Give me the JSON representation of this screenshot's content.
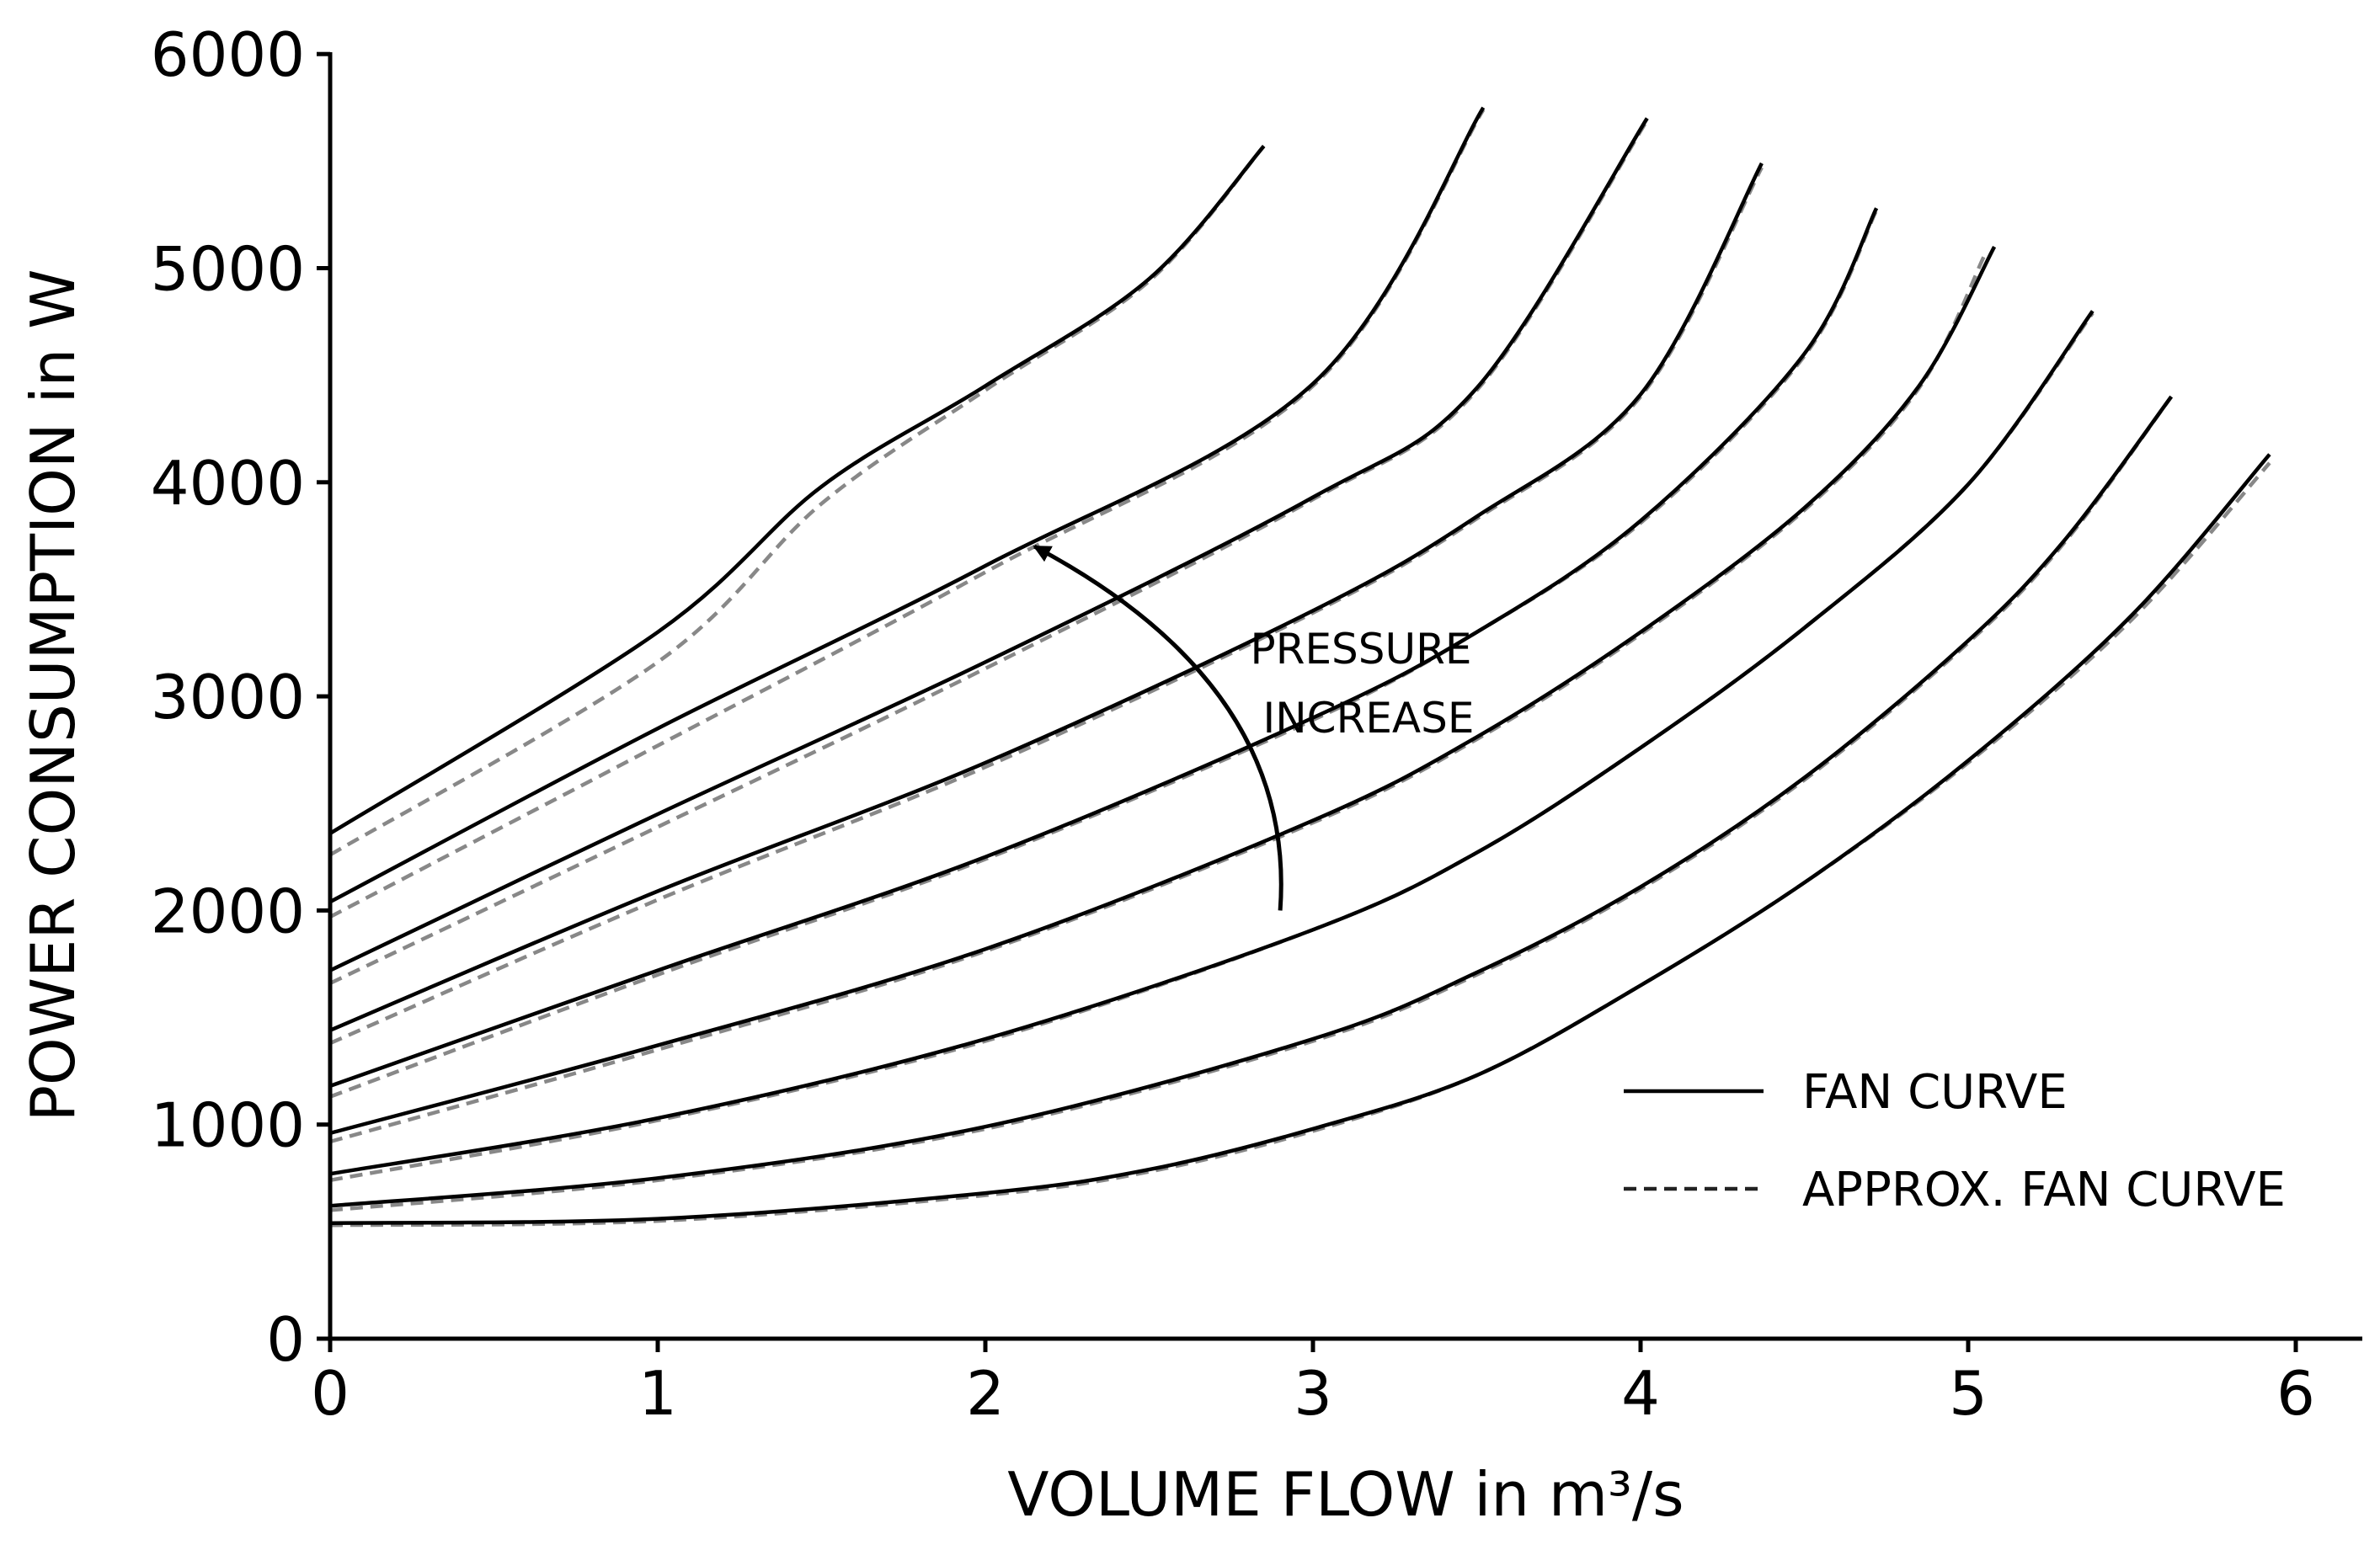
{
  "chart_data": {
    "type": "line",
    "xlabel": "VOLUME FLOW in m³/s",
    "ylabel": "POWER CONSUMPTION in W",
    "xlim": [
      0,
      6.2
    ],
    "ylim": [
      0,
      6000
    ],
    "x_ticks": [
      0,
      1,
      2,
      3,
      4,
      5,
      6
    ],
    "y_ticks": [
      0,
      1000,
      2000,
      3000,
      4000,
      5000,
      6000
    ],
    "grid": false,
    "legend_position": "bottom-right",
    "legend": [
      {
        "label": "FAN CURVE",
        "style": "solid",
        "color": "#000000"
      },
      {
        "label": "APPROX. FAN CURVE",
        "style": "dashed",
        "color": "#888888"
      }
    ],
    "annotation": {
      "lines": [
        "PRESSURE",
        "INCREASE"
      ],
      "arrow_from": [
        2.9,
        2000
      ],
      "arrow_to": [
        2.15,
        3700
      ]
    },
    "series": [
      {
        "fan": [
          [
            0,
            540
          ],
          [
            1,
            560
          ],
          [
            2,
            680
          ],
          [
            2.5,
            790
          ],
          [
            3,
            980
          ],
          [
            3.5,
            1230
          ],
          [
            4,
            1650
          ],
          [
            4.5,
            2130
          ],
          [
            5,
            2700
          ],
          [
            5.5,
            3380
          ],
          [
            5.92,
            4130
          ]
        ],
        "approx": [
          [
            0,
            530
          ],
          [
            1,
            550
          ],
          [
            2,
            670
          ],
          [
            2.5,
            780
          ],
          [
            3,
            970
          ],
          [
            3.5,
            1230
          ],
          [
            4,
            1650
          ],
          [
            4.5,
            2130
          ],
          [
            5,
            2690
          ],
          [
            5.5,
            3360
          ],
          [
            5.92,
            4090
          ]
        ]
      },
      {
        "fan": [
          [
            0,
            620
          ],
          [
            1,
            750
          ],
          [
            2,
            990
          ],
          [
            3,
            1400
          ],
          [
            3.5,
            1710
          ],
          [
            4,
            2110
          ],
          [
            4.5,
            2620
          ],
          [
            5,
            3260
          ],
          [
            5.3,
            3740
          ],
          [
            5.62,
            4400
          ]
        ],
        "approx": [
          [
            0,
            600
          ],
          [
            1,
            740
          ],
          [
            2,
            980
          ],
          [
            3,
            1390
          ],
          [
            3.5,
            1700
          ],
          [
            4,
            2100
          ],
          [
            4.5,
            2610
          ],
          [
            5,
            3250
          ],
          [
            5.3,
            3730
          ],
          [
            5.62,
            4400
          ]
        ]
      },
      {
        "fan": [
          [
            0,
            770
          ],
          [
            1,
            1030
          ],
          [
            2,
            1400
          ],
          [
            3,
            1910
          ],
          [
            3.5,
            2270
          ],
          [
            4,
            2760
          ],
          [
            4.5,
            3320
          ],
          [
            5,
            3990
          ],
          [
            5.38,
            4800
          ]
        ],
        "approx": [
          [
            0,
            740
          ],
          [
            1,
            1020
          ],
          [
            2,
            1390
          ],
          [
            3,
            1910
          ],
          [
            3.5,
            2270
          ],
          [
            4,
            2760
          ],
          [
            4.5,
            3320
          ],
          [
            5,
            3990
          ],
          [
            5.38,
            4790
          ]
        ]
      },
      {
        "fan": [
          [
            0,
            960
          ],
          [
            1,
            1370
          ],
          [
            2,
            1820
          ],
          [
            3,
            2420
          ],
          [
            3.5,
            2810
          ],
          [
            4,
            3300
          ],
          [
            4.5,
            3880
          ],
          [
            4.85,
            4450
          ],
          [
            5.08,
            5100
          ]
        ],
        "approx": [
          [
            0,
            920
          ],
          [
            1,
            1350
          ],
          [
            2,
            1810
          ],
          [
            3,
            2410
          ],
          [
            3.5,
            2800
          ],
          [
            4,
            3290
          ],
          [
            4.5,
            3870
          ],
          [
            4.85,
            4440
          ],
          [
            5.05,
            5060
          ]
        ]
      },
      {
        "fan": [
          [
            0,
            1180
          ],
          [
            1,
            1720
          ],
          [
            2,
            2250
          ],
          [
            3,
            2900
          ],
          [
            3.5,
            3300
          ],
          [
            4,
            3820
          ],
          [
            4.5,
            4600
          ],
          [
            4.72,
            5280
          ]
        ],
        "approx": [
          [
            0,
            1130
          ],
          [
            1,
            1700
          ],
          [
            2,
            2240
          ],
          [
            3,
            2890
          ],
          [
            3.5,
            3300
          ],
          [
            4,
            3810
          ],
          [
            4.5,
            4590
          ],
          [
            4.72,
            5270
          ]
        ]
      },
      {
        "fan": [
          [
            0,
            1440
          ],
          [
            1,
            2090
          ],
          [
            2,
            2690
          ],
          [
            3,
            3400
          ],
          [
            3.5,
            3840
          ],
          [
            4,
            4410
          ],
          [
            4.37,
            5490
          ]
        ],
        "approx": [
          [
            0,
            1380
          ],
          [
            1,
            2050
          ],
          [
            2,
            2670
          ],
          [
            3,
            3390
          ],
          [
            3.5,
            3830
          ],
          [
            4,
            4400
          ],
          [
            4.37,
            5470
          ]
        ]
      },
      {
        "fan": [
          [
            0,
            1720
          ],
          [
            1,
            2450
          ],
          [
            2,
            3160
          ],
          [
            3,
            3930
          ],
          [
            3.5,
            4440
          ],
          [
            4.02,
            5700
          ]
        ],
        "approx": [
          [
            0,
            1660
          ],
          [
            1,
            2390
          ],
          [
            2,
            3130
          ],
          [
            3,
            3920
          ],
          [
            3.5,
            4430
          ],
          [
            4.02,
            5690
          ]
        ]
      },
      {
        "fan": [
          [
            0,
            2040
          ],
          [
            1,
            2850
          ],
          [
            2,
            3610
          ],
          [
            3,
            4460
          ],
          [
            3.52,
            5750
          ]
        ],
        "approx": [
          [
            0,
            1970
          ],
          [
            1,
            2770
          ],
          [
            2,
            3580
          ],
          [
            3,
            4450
          ],
          [
            3.52,
            5740
          ]
        ]
      },
      {
        "fan": [
          [
            0,
            2360
          ],
          [
            1,
            3300
          ],
          [
            1.5,
            3980
          ],
          [
            2,
            4450
          ],
          [
            2.5,
            4950
          ],
          [
            2.85,
            5570
          ]
        ],
        "approx": [
          [
            0,
            2260
          ],
          [
            1,
            3160
          ],
          [
            1.5,
            3900
          ],
          [
            2,
            4430
          ],
          [
            2.5,
            4940
          ],
          [
            2.85,
            5570
          ]
        ]
      }
    ]
  }
}
